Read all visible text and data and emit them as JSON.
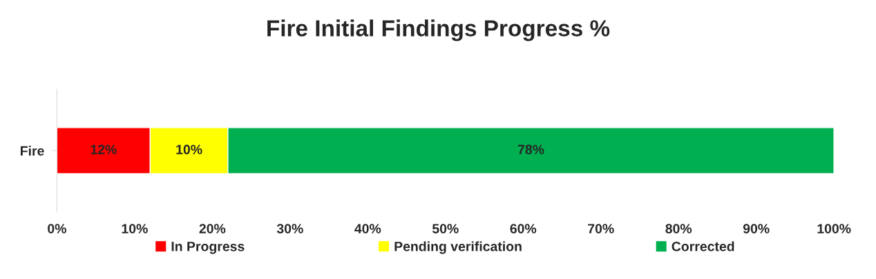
{
  "chart_data": {
    "type": "bar",
    "orientation": "horizontal",
    "stacked": true,
    "title": "Fire Initial Findings Progress %",
    "categories": [
      "Fire"
    ],
    "series": [
      {
        "name": "In Progress",
        "color": "#ff0000",
        "values": [
          12
        ]
      },
      {
        "name": "Pending verification",
        "color": "#ffff00",
        "values": [
          10
        ]
      },
      {
        "name": "Corrected",
        "color": "#00b050",
        "values": [
          78
        ]
      }
    ],
    "value_labels": [
      "12%",
      "10%",
      "78%"
    ],
    "xlim": [
      0,
      100
    ],
    "xticks": [
      {
        "value": 0,
        "label": "0%"
      },
      {
        "value": 10,
        "label": "10%"
      },
      {
        "value": 20,
        "label": "20%"
      },
      {
        "value": 30,
        "label": "30%"
      },
      {
        "value": 40,
        "label": "40%"
      },
      {
        "value": 50,
        "label": "50%"
      },
      {
        "value": 60,
        "label": "60%"
      },
      {
        "value": 70,
        "label": "70%"
      },
      {
        "value": 80,
        "label": "80%"
      },
      {
        "value": 90,
        "label": "90%"
      },
      {
        "value": 100,
        "label": "100%"
      }
    ],
    "grid": false,
    "legend": "bottom"
  }
}
